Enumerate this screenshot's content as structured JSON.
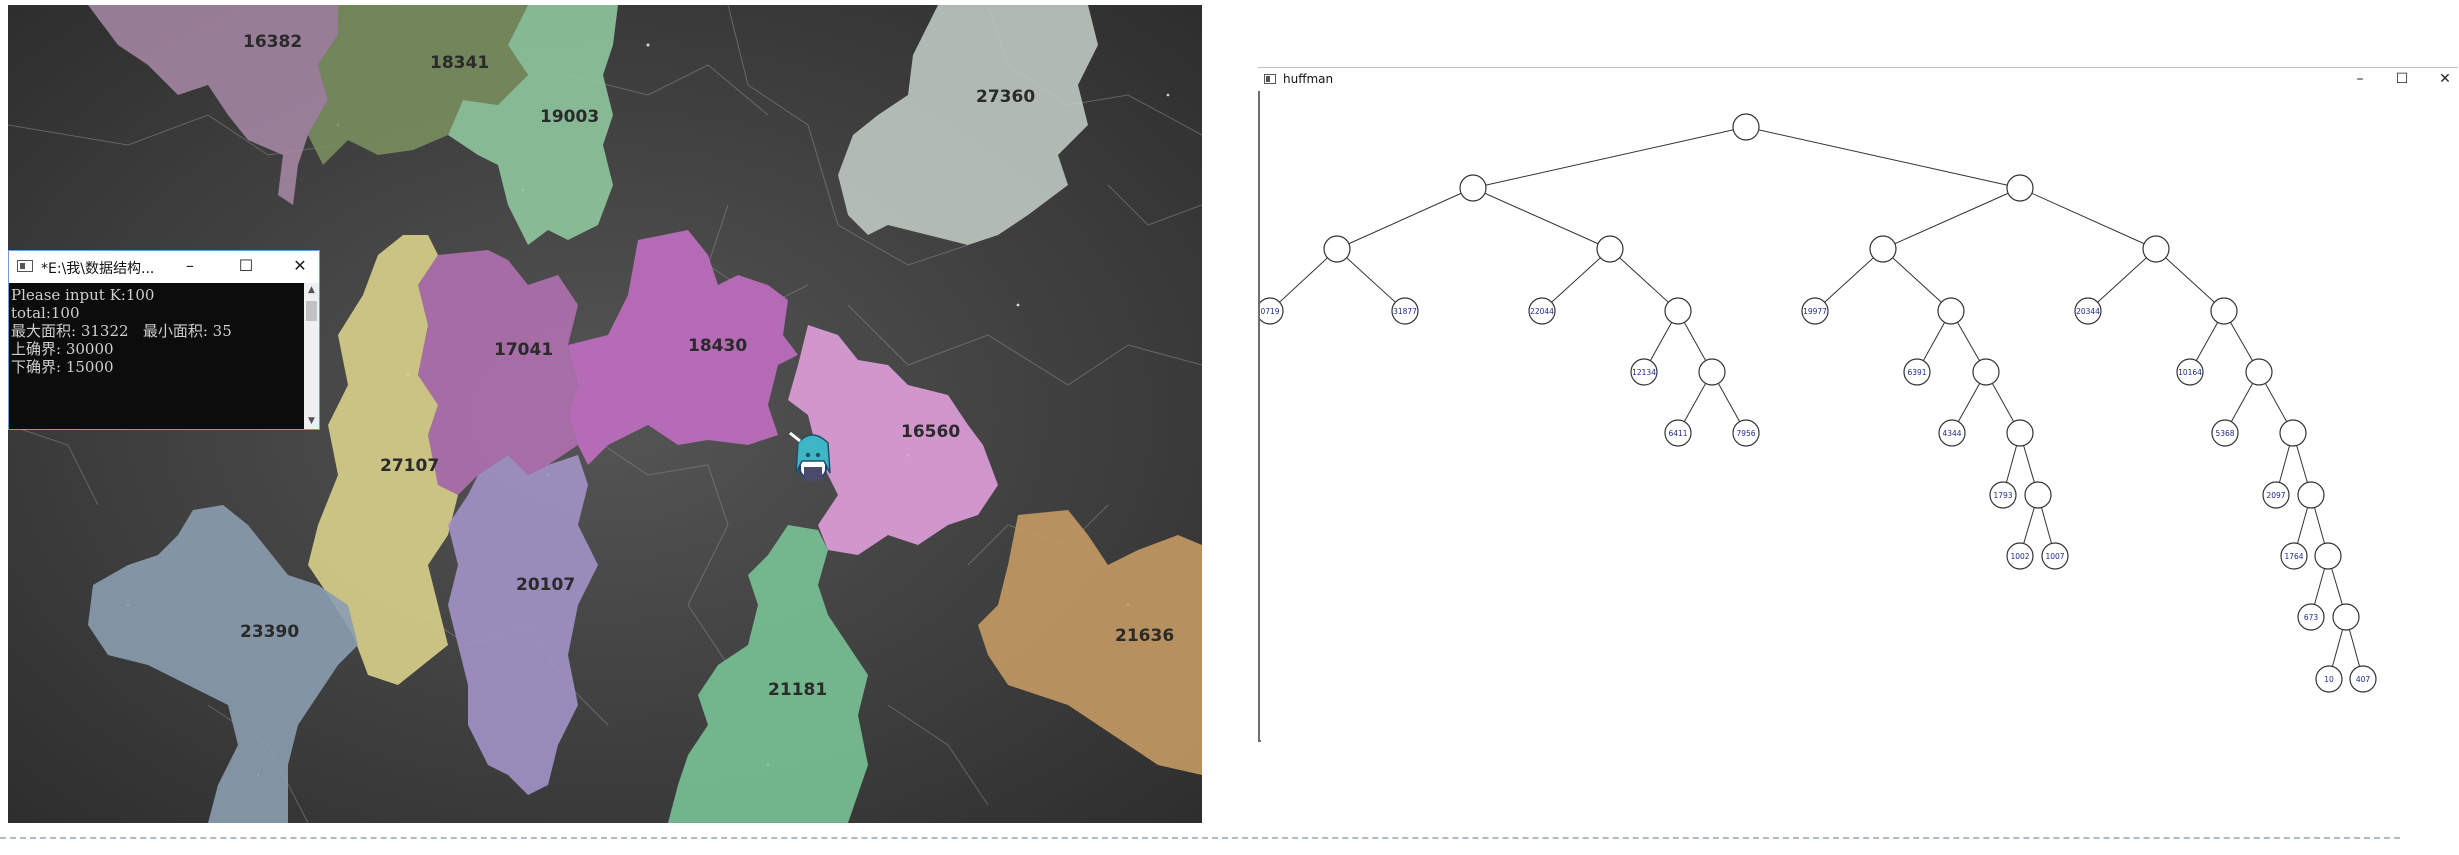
{
  "map": {
    "labels": {
      "r16382": "16382",
      "r18341": "18341",
      "r19003": "19003",
      "r27360": "27360",
      "r17041": "17041",
      "r18430": "18430",
      "r16560": "16560",
      "r27107": "27107",
      "r20107": "20107",
      "r23390": "23390",
      "r21181": "21181",
      "r21636": "21636"
    }
  },
  "console": {
    "title": "*E:\\我\\数据结构...",
    "lines": [
      "Please input K:100",
      "total:100",
      "最大面积: 31322   最小面积: 35",
      "上确界: 30000",
      "下确界: 15000"
    ],
    "buttons": {
      "minimize": "–",
      "maximize": "☐",
      "close": "✕"
    },
    "scroll_up": "▲",
    "scroll_down": "▼"
  },
  "huffman": {
    "title": "huffman",
    "buttons": {
      "minimize": "–",
      "maximize": "☐",
      "close": "✕"
    },
    "leaves": {
      "a": "0719",
      "b": "31877",
      "c": "22044",
      "d": "12134",
      "e": "6411",
      "f": "7956",
      "g": "19977",
      "h": "6391",
      "i": "4344",
      "j": "1793",
      "k": "1002",
      "l": "1007",
      "m": "20344",
      "n": "10164",
      "o": "5368",
      "p": "2097",
      "q": "1764",
      "r": "673",
      "s": "10",
      "t": "407"
    }
  },
  "colors": {
    "map_background": "#3c3c3c",
    "console_background": "#0c0c0c",
    "tree_node_text": "#1f2a8a",
    "separator": "#a9bccb"
  }
}
